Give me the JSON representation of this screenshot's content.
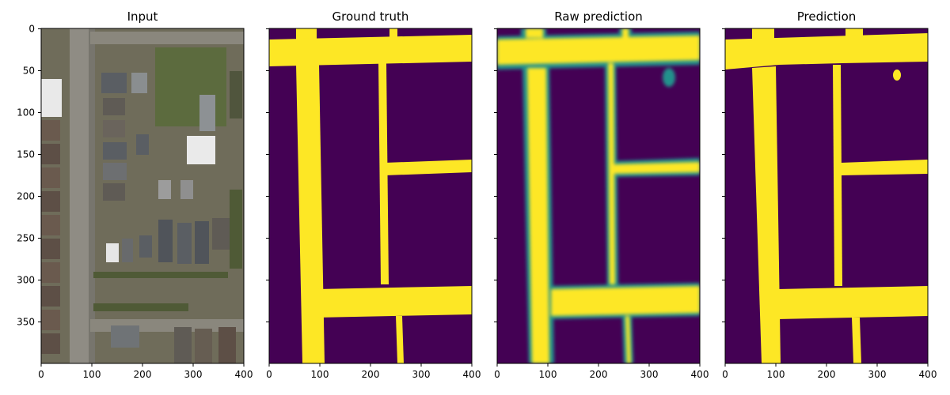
{
  "figure": {
    "panels": [
      {
        "id": "input",
        "title": "Input",
        "kind": "aerial"
      },
      {
        "id": "ground_truth",
        "title": "Ground truth",
        "kind": "mask"
      },
      {
        "id": "raw_prediction",
        "title": "Raw prediction",
        "kind": "soft"
      },
      {
        "id": "prediction",
        "title": "Prediction",
        "kind": "mask"
      }
    ],
    "x_ticks": [
      "0",
      "100",
      "200",
      "300",
      "400"
    ],
    "y_ticks": [
      "0",
      "50",
      "100",
      "150",
      "200",
      "250",
      "300",
      "350"
    ],
    "colors": {
      "mask_background": "#440154",
      "mask_foreground": "#fde725",
      "soft_edge": "#21918c",
      "aerial_base": "#6f6c5a",
      "aerial_road": "#8f8c84",
      "aerial_roof": "#5a5e63",
      "aerial_grass": "#5c6b3e"
    }
  }
}
